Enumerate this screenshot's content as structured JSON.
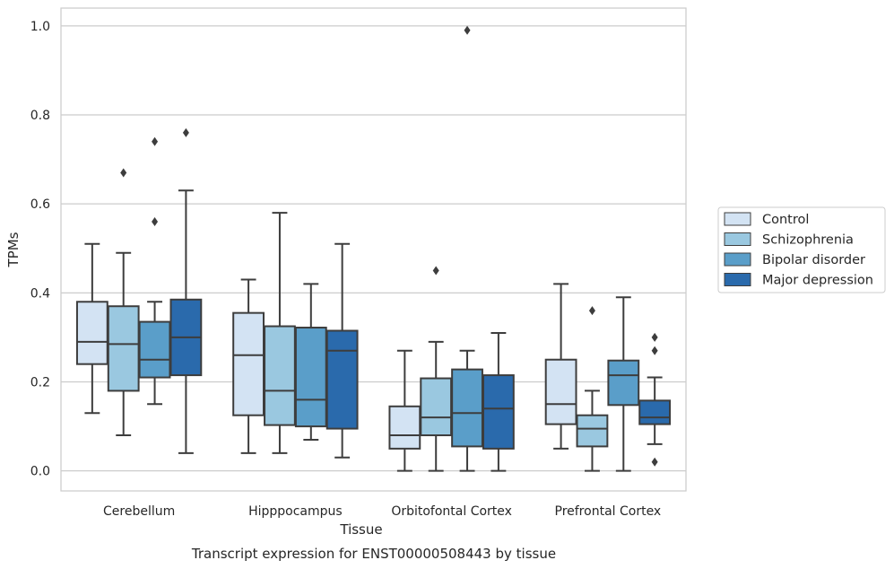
{
  "chart_data": {
    "type": "boxplot",
    "xlabel": "Tissue",
    "ylabel": "TPMs",
    "caption": "Transcript expression for ENST00000508443 by tissue",
    "ylim": [
      -0.045,
      1.04
    ],
    "yticks": [
      0.0,
      0.2,
      0.4,
      0.6,
      0.8,
      1.0
    ],
    "ytick_labels": [
      "0.0",
      "0.2",
      "0.4",
      "0.6",
      "0.8",
      "1.0"
    ],
    "grid": true,
    "legend_position": "right",
    "categories": [
      "Cerebellum",
      "Hipppocampus",
      "Orbitofontal Cortex",
      "Prefrontal Cortex"
    ],
    "series": [
      {
        "name": "Control",
        "color": "#d3e3f3",
        "boxes": [
          {
            "whislo": 0.13,
            "q1": 0.24,
            "med": 0.29,
            "q3": 0.38,
            "whishi": 0.51,
            "fliers": []
          },
          {
            "whislo": 0.04,
            "q1": 0.125,
            "med": 0.26,
            "q3": 0.355,
            "whishi": 0.43,
            "fliers": []
          },
          {
            "whislo": 0.0,
            "q1": 0.05,
            "med": 0.08,
            "q3": 0.145,
            "whishi": 0.27,
            "fliers": []
          },
          {
            "whislo": 0.05,
            "q1": 0.105,
            "med": 0.15,
            "q3": 0.25,
            "whishi": 0.42,
            "fliers": []
          }
        ]
      },
      {
        "name": "Schizophrenia",
        "color": "#9ac8e0",
        "boxes": [
          {
            "whislo": 0.08,
            "q1": 0.18,
            "med": 0.285,
            "q3": 0.37,
            "whishi": 0.49,
            "fliers": [
              0.67
            ]
          },
          {
            "whislo": 0.04,
            "q1": 0.103,
            "med": 0.18,
            "q3": 0.325,
            "whishi": 0.58,
            "fliers": []
          },
          {
            "whislo": 0.0,
            "q1": 0.08,
            "med": 0.12,
            "q3": 0.208,
            "whishi": 0.29,
            "fliers": [
              0.45
            ]
          },
          {
            "whislo": 0.0,
            "q1": 0.055,
            "med": 0.095,
            "q3": 0.125,
            "whishi": 0.18,
            "fliers": [
              0.36
            ]
          }
        ]
      },
      {
        "name": "Bipolar disorder",
        "color": "#5a9ec9",
        "boxes": [
          {
            "whislo": 0.15,
            "q1": 0.21,
            "med": 0.25,
            "q3": 0.335,
            "whishi": 0.38,
            "fliers": [
              0.56,
              0.74
            ]
          },
          {
            "whislo": 0.07,
            "q1": 0.1,
            "med": 0.16,
            "q3": 0.322,
            "whishi": 0.42,
            "fliers": []
          },
          {
            "whislo": 0.0,
            "q1": 0.055,
            "med": 0.13,
            "q3": 0.228,
            "whishi": 0.27,
            "fliers": [
              0.99
            ]
          },
          {
            "whislo": 0.0,
            "q1": 0.148,
            "med": 0.215,
            "q3": 0.248,
            "whishi": 0.39,
            "fliers": []
          }
        ]
      },
      {
        "name": "Major depression",
        "color": "#2a6aac",
        "boxes": [
          {
            "whislo": 0.04,
            "q1": 0.215,
            "med": 0.3,
            "q3": 0.385,
            "whishi": 0.63,
            "fliers": [
              0.76
            ]
          },
          {
            "whislo": 0.03,
            "q1": 0.095,
            "med": 0.27,
            "q3": 0.315,
            "whishi": 0.51,
            "fliers": []
          },
          {
            "whislo": 0.0,
            "q1": 0.05,
            "med": 0.14,
            "q3": 0.215,
            "whishi": 0.31,
            "fliers": []
          },
          {
            "whislo": 0.06,
            "q1": 0.105,
            "med": 0.12,
            "q3": 0.158,
            "whishi": 0.21,
            "fliers": [
              0.02,
              0.27,
              0.3
            ]
          }
        ]
      }
    ]
  }
}
